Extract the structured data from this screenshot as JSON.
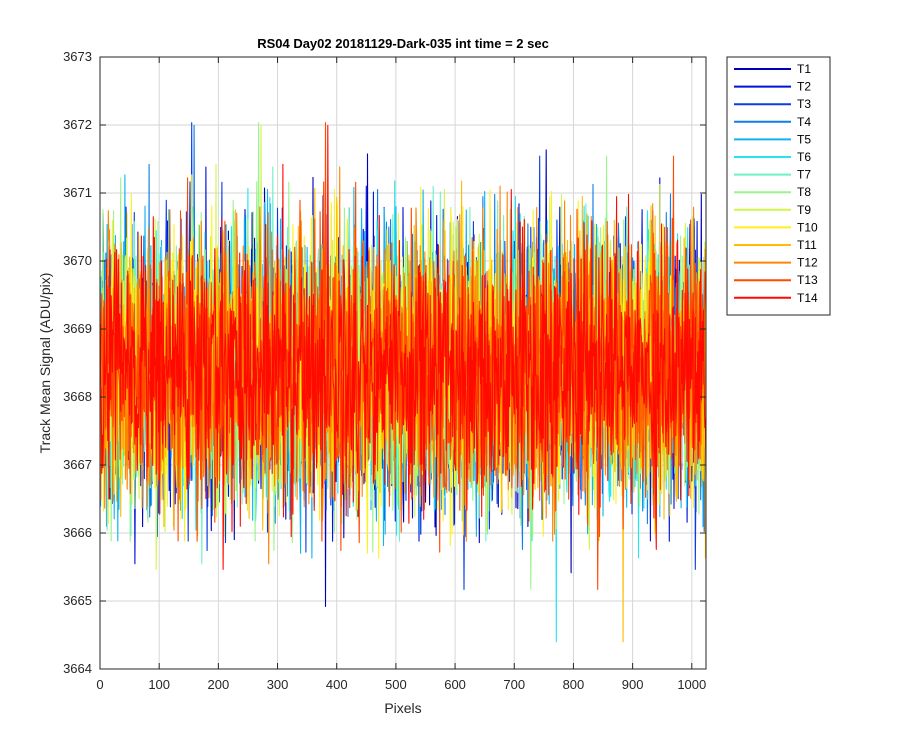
{
  "chart_data": {
    "type": "line",
    "title": "RS04 Day02 20181129-Dark-035 int time = 2 sec",
    "xlabel": "Pixels",
    "ylabel": "Track Mean Signal (ADU/pix)",
    "xlim": [
      0,
      1024
    ],
    "ylim": [
      3664,
      3673
    ],
    "xticks": [
      "0",
      "100",
      "200",
      "300",
      "400",
      "500",
      "600",
      "700",
      "800",
      "900",
      "1000"
    ],
    "xtick_values": [
      0,
      100,
      200,
      300,
      400,
      500,
      600,
      700,
      800,
      900,
      1000
    ],
    "yticks": [
      "3664",
      "3665",
      "3666",
      "3667",
      "3668",
      "3669",
      "3670",
      "3671",
      "3672",
      "3673"
    ],
    "ytick_values": [
      3664,
      3665,
      3666,
      3667,
      3668,
      3669,
      3670,
      3671,
      3672,
      3673
    ],
    "grid": true,
    "legend_position": "outside-top-right",
    "series_mean": 3668.4,
    "series_std": 0.95,
    "series": [
      {
        "name": "T1",
        "color": "#0000bb"
      },
      {
        "name": "T2",
        "color": "#0012d8"
      },
      {
        "name": "T3",
        "color": "#0a3ce6"
      },
      {
        "name": "T4",
        "color": "#0e7ee8"
      },
      {
        "name": "T5",
        "color": "#10b4ee"
      },
      {
        "name": "T6",
        "color": "#22e6ee"
      },
      {
        "name": "T7",
        "color": "#6ef0c8"
      },
      {
        "name": "T8",
        "color": "#9af58a"
      },
      {
        "name": "T9",
        "color": "#d2f54a"
      },
      {
        "name": "T10",
        "color": "#fff01c"
      },
      {
        "name": "T11",
        "color": "#ffbc00"
      },
      {
        "name": "T12",
        "color": "#ff8400"
      },
      {
        "name": "T13",
        "color": "#ff4a00"
      },
      {
        "name": "T14",
        "color": "#ff0a00"
      }
    ]
  }
}
